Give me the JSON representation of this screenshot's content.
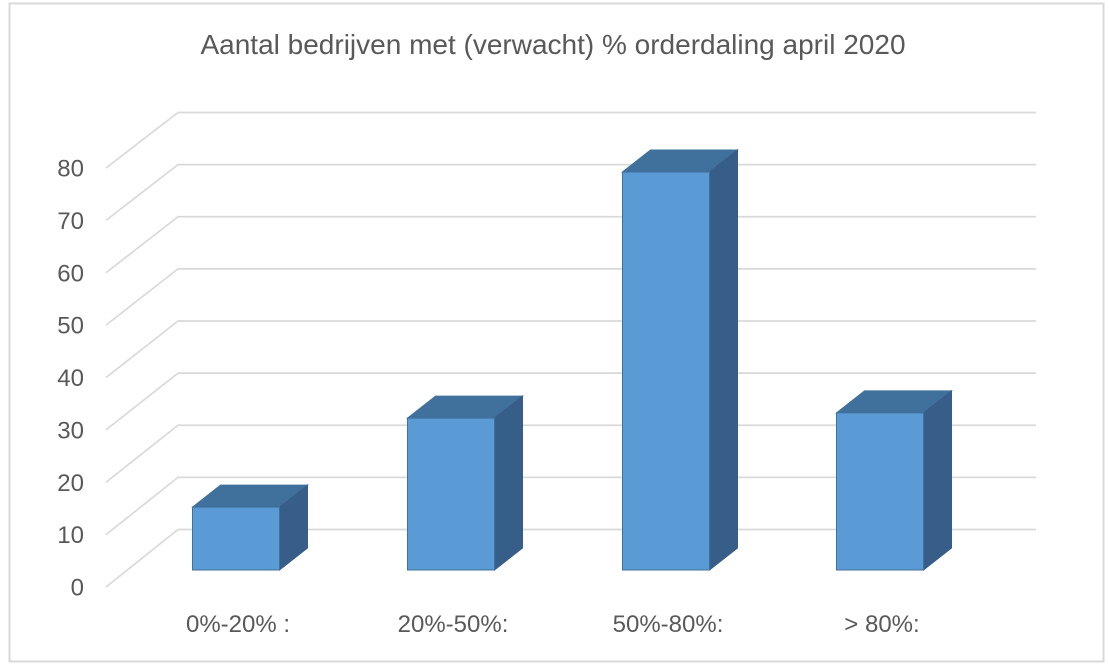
{
  "frame": {
    "background": "#FFFFFF",
    "border_color": "#D9D9D9"
  },
  "chart_data": {
    "type": "bar",
    "style": "3d-column",
    "title": "Aantal bedrijven met (verwacht) % orderdaling april 2020",
    "categories": [
      "0%-20% :",
      "20%-50%:",
      "50%-80%:",
      "> 80%:"
    ],
    "values": [
      12,
      29,
      76,
      30
    ],
    "xlabel": "",
    "ylabel": "",
    "ylim": [
      0,
      80
    ],
    "yticks": [
      0,
      10,
      20,
      30,
      40,
      50,
      60,
      70,
      80
    ],
    "grid": true,
    "legend": false,
    "colors": {
      "bar_front": "#5B9BD5",
      "bar_top": "#40719C",
      "bar_side": "#375E88",
      "bar_edge": "#41719C",
      "gridline": "#D9D9D9",
      "text": "#595959"
    }
  }
}
